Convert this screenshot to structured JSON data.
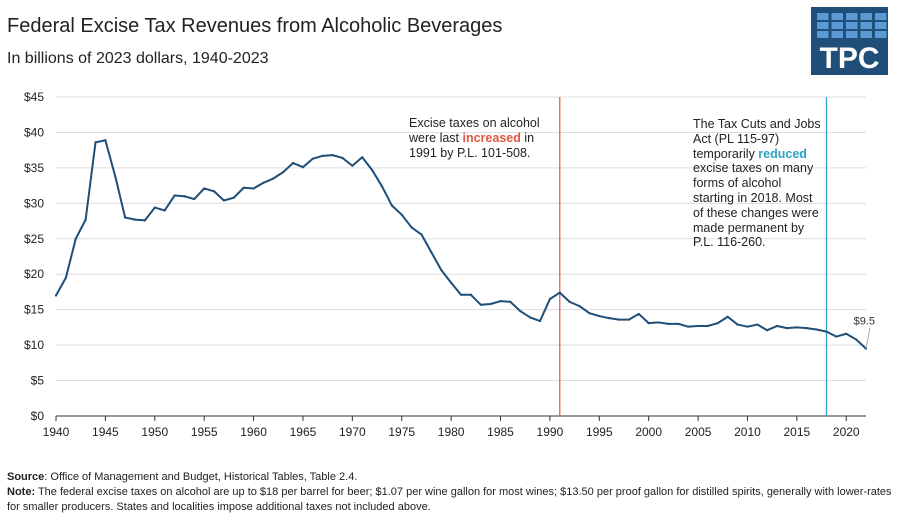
{
  "header": {
    "title": "Federal Excise Tax Revenues from Alcoholic Beverages",
    "subtitle": "In billions of 2023 dollars, 1940-2023"
  },
  "logo": {
    "text": "TPC",
    "bg_color": "#1f4e79",
    "cell_color": "#5b9bd5"
  },
  "annotations": {
    "a1_pre": "Excise taxes on alcohol were last ",
    "a1_em": "increased",
    "a1_post": " in 1991 by P.L. 101-508.",
    "a2_pre": "The Tax Cuts and Jobs Act (PL 115-97) temporarily ",
    "a2_em": "reduced",
    "a2_post": " excise taxes on many forms of alcohol starting in 2018. Most of these changes were made permanent by P.L. 116-260."
  },
  "footer": {
    "source_label": "Source",
    "source_text": ": Office of Management and Budget, Historical Tables, Table 2.4.",
    "note_label": "Note:",
    "note_text": " The federal excise taxes on alcohol are up to $18 per barrel for beer; $1.07 per wine gallon for most wines; $13.50 per proof gallon for distilled spirits, generally with lower-rates for smaller producers. States and localities impose additional taxes not included above."
  },
  "colors": {
    "line": "#1f4e79",
    "red_marker": "#e0573f",
    "teal_marker": "#2ba3c2",
    "grid": "#dddddd"
  },
  "chart_data": {
    "type": "line",
    "title": "Federal Excise Tax Revenues from Alcoholic Beverages",
    "subtitle": "In billions of 2023 dollars, 1940-2023",
    "xlabel": "",
    "ylabel": "",
    "xlim": [
      1940,
      2022
    ],
    "ylim": [
      0,
      45
    ],
    "xticks": [
      1940,
      1945,
      1950,
      1955,
      1960,
      1965,
      1970,
      1975,
      1980,
      1985,
      1990,
      1995,
      2000,
      2005,
      2010,
      2015,
      2020
    ],
    "yticks": [
      0,
      5,
      10,
      15,
      20,
      25,
      30,
      35,
      40,
      45
    ],
    "ytick_labels": [
      "$0",
      "$5",
      "$10",
      "$15",
      "$20",
      "$25",
      "$30",
      "$35",
      "$40",
      "$45"
    ],
    "grid": true,
    "vertical_markers": [
      {
        "year": 1991,
        "color": "#e0573f",
        "label": "1991 increase"
      },
      {
        "year": 2018,
        "color": "#2ba3c2",
        "label": "2018 TCJA reduction"
      }
    ],
    "end_label": "$9.5",
    "series": [
      {
        "name": "Federal excise tax revenues from alcoholic beverages",
        "x": [
          1940,
          1941,
          1942,
          1943,
          1944,
          1945,
          1946,
          1947,
          1948,
          1949,
          1950,
          1951,
          1952,
          1953,
          1954,
          1955,
          1956,
          1957,
          1958,
          1959,
          1960,
          1961,
          1962,
          1963,
          1964,
          1965,
          1966,
          1967,
          1968,
          1969,
          1970,
          1971,
          1972,
          1973,
          1974,
          1975,
          1976,
          1977,
          1978,
          1979,
          1980,
          1981,
          1982,
          1983,
          1984,
          1985,
          1986,
          1987,
          1988,
          1989,
          1990,
          1991,
          1992,
          1993,
          1994,
          1995,
          1996,
          1997,
          1998,
          1999,
          2000,
          2001,
          2002,
          2003,
          2004,
          2005,
          2006,
          2007,
          2008,
          2009,
          2010,
          2011,
          2012,
          2013,
          2014,
          2015,
          2016,
          2017,
          2018,
          2019,
          2020,
          2021,
          2022
        ],
        "values": [
          17.0,
          19.5,
          25.0,
          27.7,
          38.6,
          38.9,
          33.8,
          28.0,
          27.7,
          27.6,
          29.4,
          29.0,
          31.1,
          31.0,
          30.6,
          32.1,
          31.7,
          30.4,
          30.8,
          32.2,
          32.1,
          32.9,
          33.5,
          34.4,
          35.7,
          35.1,
          36.3,
          36.7,
          36.8,
          36.4,
          35.3,
          36.5,
          34.7,
          32.4,
          29.7,
          28.4,
          26.6,
          25.6,
          23.1,
          20.6,
          18.8,
          17.1,
          17.1,
          15.7,
          15.8,
          16.2,
          16.1,
          14.8,
          13.9,
          13.4,
          16.5,
          17.4,
          16.1,
          15.5,
          14.5,
          14.1,
          13.8,
          13.6,
          13.6,
          14.4,
          13.1,
          13.2,
          13.0,
          13.0,
          12.6,
          12.7,
          12.7,
          13.1,
          14.0,
          12.9,
          12.6,
          12.9,
          12.1,
          12.7,
          12.4,
          12.5,
          12.4,
          12.2,
          11.9,
          11.2,
          11.6,
          10.8,
          9.5
        ]
      }
    ]
  }
}
